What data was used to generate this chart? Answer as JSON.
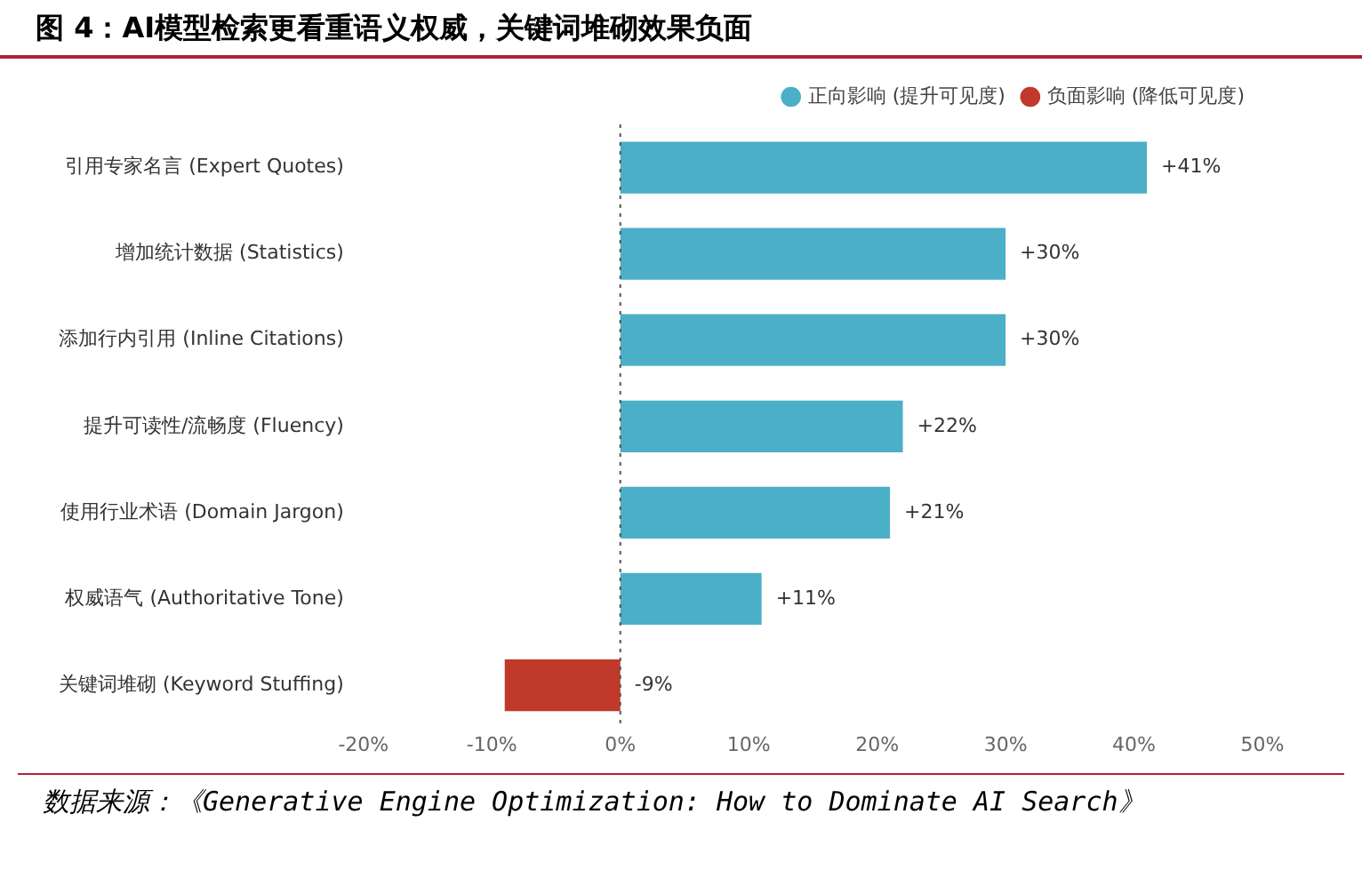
{
  "chart_data": {
    "type": "bar",
    "orientation": "horizontal",
    "stacked": true,
    "title": "图 4：AI模型检索更看重语义权威，关键词堆砌效果负面",
    "categories": [
      "引用专家名言 (Expert Quotes)",
      "增加统计数据 (Statistics)",
      "添加行内引用 (Inline Citations)",
      "提升可读性/流畅度 (Fluency)",
      "使用行业术语 (Domain Jargon)",
      "权威语气 (Authoritative Tone)",
      "关键词堆砌 (Keyword Stuffing)"
    ],
    "series": [
      {
        "name": "正向影响 (提升可见度)",
        "color": "#4bafc8",
        "values": [
          41,
          30,
          30,
          22,
          21,
          11,
          null
        ],
        "value_labels": [
          "+41%",
          "+30%",
          "+30%",
          "+22%",
          "+21%",
          "+11%",
          null
        ]
      },
      {
        "name": "负面影响 (降低可见度)",
        "color": "#c0392b",
        "values": [
          null,
          null,
          null,
          null,
          null,
          null,
          -9
        ],
        "value_labels": [
          null,
          null,
          null,
          null,
          null,
          null,
          "-9%"
        ]
      }
    ],
    "xlim": [
      -20,
      50
    ],
    "xticks": [
      {
        "value": -20,
        "label": "-20%"
      },
      {
        "value": -10,
        "label": "-10%"
      },
      {
        "value": 0,
        "label": "0%"
      },
      {
        "value": 10,
        "label": "10%"
      },
      {
        "value": 20,
        "label": "20%"
      },
      {
        "value": 30,
        "label": "30%"
      },
      {
        "value": 40,
        "label": "40%"
      },
      {
        "value": 50,
        "label": "50%"
      }
    ],
    "ref_lines": [
      {
        "axis": "x",
        "value": 0,
        "line_style": "dotted",
        "color": "#555555"
      }
    ],
    "grid": false,
    "legend": "top right",
    "annotations": [
      "数据来源：《Generative Engine Optimization: How to Dominate AI Search》"
    ]
  }
}
